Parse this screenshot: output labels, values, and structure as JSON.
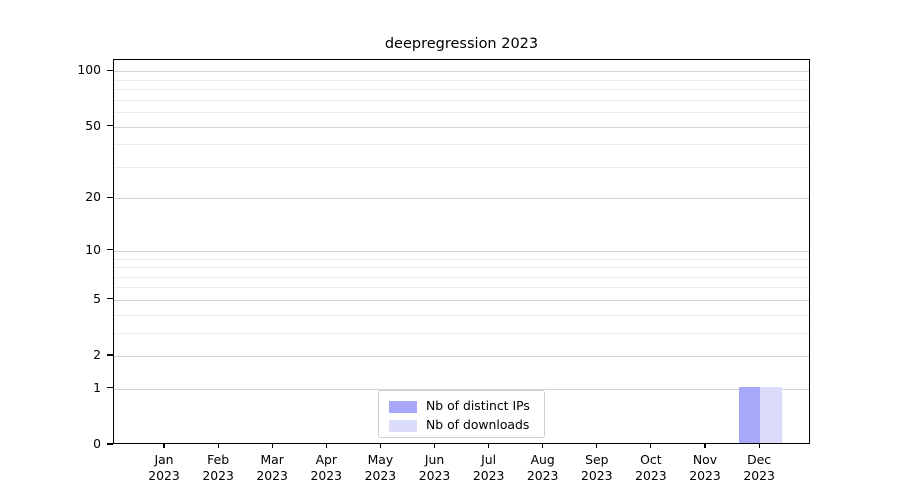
{
  "chart_data": {
    "type": "bar",
    "title": "deepregression 2023",
    "categories": [
      "Jan 2023",
      "Feb 2023",
      "Mar 2023",
      "Apr 2023",
      "May 2023",
      "Jun 2023",
      "Jul 2023",
      "Aug 2023",
      "Sep 2023",
      "Oct 2023",
      "Nov 2023",
      "Dec 2023"
    ],
    "series": [
      {
        "name": "Nb of distinct IPs",
        "color": "#a8a8fa",
        "values": [
          0,
          0,
          0,
          0,
          0,
          0,
          0,
          0,
          0,
          0,
          0,
          1
        ]
      },
      {
        "name": "Nb of downloads",
        "color": "#dbdbfa",
        "values": [
          0,
          0,
          0,
          0,
          0,
          0,
          0,
          0,
          0,
          0,
          0,
          1
        ]
      }
    ],
    "xlabel": "",
    "ylabel": "",
    "yscale": "log1p",
    "ylim": [
      0,
      115
    ],
    "y_major_ticks": [
      0,
      1,
      2,
      5,
      10,
      20,
      50,
      100
    ],
    "y_minor_gridlines": [
      3,
      4,
      6,
      7,
      8,
      9,
      30,
      40,
      60,
      70,
      80,
      90
    ],
    "grid": true,
    "legend_position": "lower center",
    "colors": {
      "axis": "#000000",
      "major_grid": "#d3d3d3",
      "minor_grid": "#ebebeb",
      "legend_border": "#cfcfcf"
    }
  }
}
